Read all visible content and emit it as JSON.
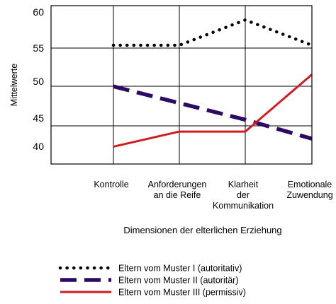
{
  "chart_data": {
    "type": "line",
    "categories": [
      [
        "Kontrolle"
      ],
      [
        "Anforderungen",
        "an die Reife"
      ],
      [
        "Klarheit",
        "der",
        "Kommunikation"
      ],
      [
        "Emotionale",
        "Zuwendung"
      ]
    ],
    "xlabel": "Dimensionen der elterlichen Erziehung",
    "ylabel": "Mittelwerte",
    "ylim": [
      40,
      60
    ],
    "yticks": [
      40,
      45,
      50,
      55,
      60
    ],
    "grid": true,
    "legend_position": "bottom",
    "series": [
      {
        "name": "Eltern vom Muster I (autoritativ)",
        "style": "dotted",
        "color": "#000000",
        "values": [
          55,
          55,
          58.2,
          55
        ]
      },
      {
        "name": "Eltern vom Muster II (autoritär)",
        "style": "dashed",
        "color": "#2d0a63",
        "values": [
          49.8,
          47.7,
          45.6,
          43.2
        ]
      },
      {
        "name": "Eltern vom Muster III (permissiv)",
        "style": "solid",
        "color": "#d11b22",
        "values": [
          42.2,
          44.1,
          44.1,
          51.3
        ]
      }
    ]
  }
}
